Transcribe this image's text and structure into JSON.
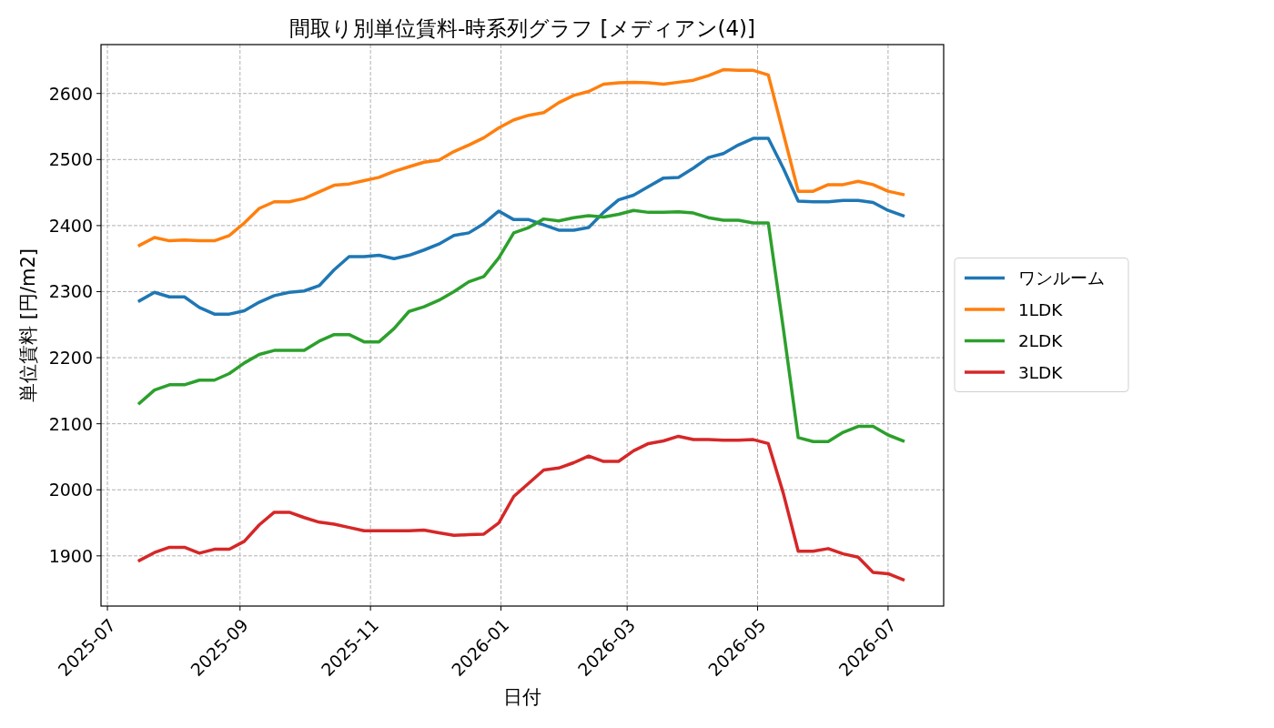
{
  "chart_data": {
    "type": "line",
    "title": "間取り別単位賃料-時系列グラフ [メディアン(4)]",
    "xlabel": "日付",
    "ylabel": "単位賃料 [円/m2]",
    "x": [
      "2025-07-16",
      "2025-07-23",
      "2025-07-30",
      "2025-08-06",
      "2025-08-13",
      "2025-08-20",
      "2025-08-27",
      "2025-09-03",
      "2025-09-10",
      "2025-09-17",
      "2025-09-24",
      "2025-10-01",
      "2025-10-08",
      "2025-10-15",
      "2025-10-22",
      "2025-10-29",
      "2025-11-05",
      "2025-11-12",
      "2025-11-19",
      "2025-11-26",
      "2025-12-03",
      "2025-12-10",
      "2025-12-17",
      "2025-12-24",
      "2025-12-31",
      "2026-01-07",
      "2026-01-14",
      "2026-01-21",
      "2026-01-28",
      "2026-02-04",
      "2026-02-11",
      "2026-02-18",
      "2026-02-25",
      "2026-03-04",
      "2026-03-11",
      "2026-03-18",
      "2026-03-25",
      "2026-04-01",
      "2026-04-08",
      "2026-04-15",
      "2026-04-22",
      "2026-04-29",
      "2026-05-06",
      "2026-05-13",
      "2026-05-20",
      "2026-05-27",
      "2026-06-03",
      "2026-06-10",
      "2026-06-17",
      "2026-06-24",
      "2026-07-01",
      "2026-07-08"
    ],
    "series": [
      {
        "name": "ワンルーム",
        "color": "#1f77b4",
        "values": [
          2286,
          2299,
          2292,
          2292,
          2276,
          2266,
          2266,
          2271,
          2284,
          2294,
          2299,
          2301,
          2309,
          2333,
          2353,
          2353,
          2355,
          2350,
          2355,
          2363,
          2372,
          2385,
          2389,
          2403,
          2422,
          2409,
          2409,
          2401,
          2393,
          2393,
          2397,
          2420,
          2439,
          2446,
          2459,
          2472,
          2473,
          2487,
          2503,
          2509,
          2522,
          2532,
          2532,
          2487,
          2437,
          2436,
          2436,
          2438,
          2438,
          2435,
          2423,
          2415
        ]
      },
      {
        "name": "1LDK",
        "color": "#ff7f0e",
        "values": [
          2370,
          2382,
          2377,
          2378,
          2377,
          2377,
          2385,
          2404,
          2426,
          2436,
          2436,
          2441,
          2451,
          2461,
          2463,
          2468,
          2473,
          2482,
          2489,
          2496,
          2499,
          2512,
          2522,
          2533,
          2548,
          2560,
          2567,
          2571,
          2586,
          2597,
          2603,
          2614,
          2616,
          2617,
          2616,
          2614,
          2617,
          2620,
          2627,
          2636,
          2635,
          2635,
          2628,
          2540,
          2452,
          2452,
          2462,
          2462,
          2467,
          2462,
          2452,
          2447
        ]
      },
      {
        "name": "2LDK",
        "color": "#2ca02c",
        "values": [
          2131,
          2151,
          2159,
          2159,
          2166,
          2166,
          2176,
          2192,
          2205,
          2211,
          2211,
          2211,
          2225,
          2235,
          2235,
          2224,
          2224,
          2244,
          2270,
          2277,
          2287,
          2300,
          2315,
          2323,
          2351,
          2389,
          2397,
          2410,
          2407,
          2412,
          2415,
          2413,
          2417,
          2423,
          2420,
          2420,
          2421,
          2419,
          2412,
          2408,
          2408,
          2404,
          2404,
          2245,
          2079,
          2073,
          2073,
          2087,
          2096,
          2096,
          2083,
          2074
        ]
      },
      {
        "name": "3LDK",
        "color": "#d62728",
        "values": [
          1893,
          1905,
          1913,
          1913,
          1904,
          1910,
          1910,
          1922,
          1947,
          1966,
          1966,
          1958,
          1951,
          1948,
          1943,
          1938,
          1938,
          1938,
          1938,
          1939,
          1935,
          1931,
          1932,
          1933,
          1950,
          1990,
          2010,
          2030,
          2033,
          2041,
          2051,
          2043,
          2043,
          2059,
          2070,
          2074,
          2081,
          2076,
          2076,
          2075,
          2075,
          2076,
          2070,
          1995,
          1907,
          1907,
          1911,
          1903,
          1898,
          1875,
          1873,
          1864
        ]
      }
    ],
    "xlim": [
      "2025-06-28",
      "2026-07-27"
    ],
    "xticks": [
      {
        "value": "2025-07-01",
        "label": "2025-07"
      },
      {
        "value": "2025-09-01",
        "label": "2025-09"
      },
      {
        "value": "2025-11-01",
        "label": "2025-11"
      },
      {
        "value": "2026-01-01",
        "label": "2026-01"
      },
      {
        "value": "2026-03-01",
        "label": "2026-03"
      },
      {
        "value": "2026-05-01",
        "label": "2026-05"
      },
      {
        "value": "2026-07-01",
        "label": "2026-07"
      }
    ],
    "ylim": [
      1824,
      2674
    ],
    "yticks": [
      1900,
      2000,
      2100,
      2200,
      2300,
      2400,
      2500,
      2600
    ],
    "grid": true,
    "legend": "right",
    "marker": "none",
    "line_style": "solid"
  }
}
